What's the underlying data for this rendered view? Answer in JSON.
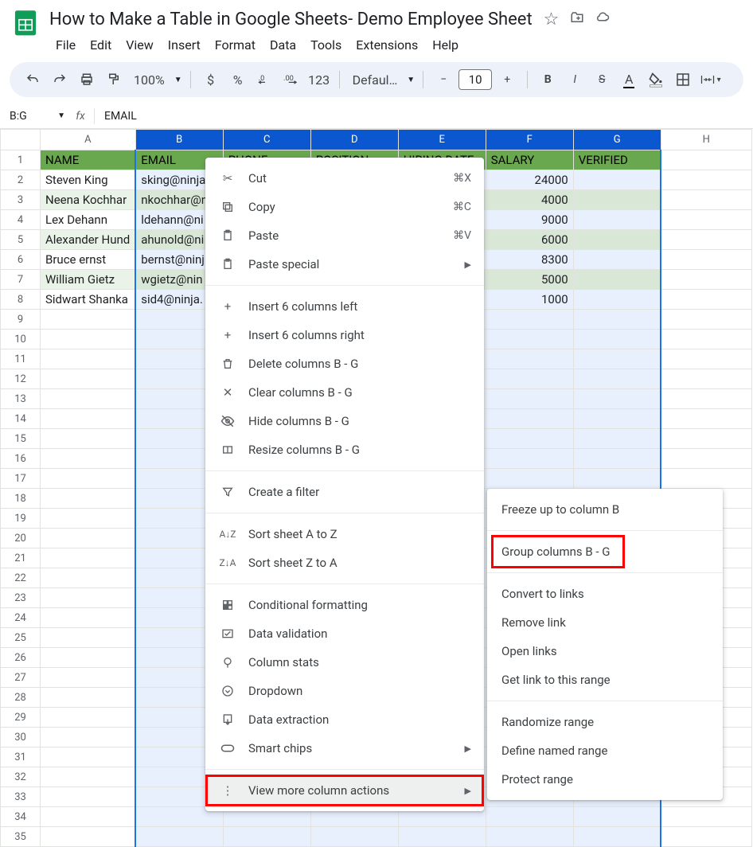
{
  "doc": {
    "title": "How to Make a Table in Google Sheets- Demo Employee Sheet"
  },
  "menu": {
    "file": "File",
    "edit": "Edit",
    "view": "View",
    "insert": "Insert",
    "format": "Format",
    "data": "Data",
    "tools": "Tools",
    "extensions": "Extensions",
    "help": "Help"
  },
  "toolbar": {
    "zoom": "100%",
    "fontname": "Defaul…",
    "fontsize": "10"
  },
  "namebox": {
    "ref": "B:G",
    "fx": "fx",
    "formula": "EMAIL"
  },
  "cols": [
    "A",
    "B",
    "C",
    "D",
    "E",
    "F",
    "G",
    "H"
  ],
  "headers": {
    "name": "NAME",
    "email": "EMAIL",
    "phone": "PHONE",
    "position": "POSITION",
    "hiring": "HIRING DATE",
    "salary": "SALARY",
    "verified": "VERIFIED"
  },
  "rows": [
    {
      "name": "Steven King",
      "email": "sking@ninja",
      "salary": "24000",
      "alt": false
    },
    {
      "name": "Neena Kochhar",
      "email": "nkochhar@n",
      "salary": "4000",
      "alt": true
    },
    {
      "name": "Lex Dehann",
      "email": "ldehann@ni",
      "salary": "9000",
      "alt": false
    },
    {
      "name": "Alexander Hund",
      "email": "ahunold@ni",
      "salary": "6000",
      "alt": true
    },
    {
      "name": "Bruce ernst",
      "email": "bernst@ninj",
      "salary": "8300",
      "alt": false
    },
    {
      "name": "William Gietz",
      "email": "wgietz@nin",
      "salary": "5000",
      "alt": true
    },
    {
      "name": "Sidwart Shanka",
      "email": "sid4@ninja.",
      "salary": "1000",
      "alt": false
    }
  ],
  "ctx1": {
    "cut": "Cut",
    "cut_s": "⌘X",
    "copy": "Copy",
    "copy_s": "⌘C",
    "paste": "Paste",
    "paste_s": "⌘V",
    "pspecial": "Paste special",
    "insL": "Insert 6 columns left",
    "insR": "Insert 6 columns right",
    "del": "Delete columns B - G",
    "clear": "Clear columns B - G",
    "hide": "Hide columns B - G",
    "resize": "Resize columns B - G",
    "filter": "Create a filter",
    "sortAZ": "Sort sheet A to Z",
    "sortZA": "Sort sheet Z to A",
    "condfmt": "Conditional formatting",
    "dataval": "Data validation",
    "colstats": "Column stats",
    "dropdown": "Dropdown",
    "dataext": "Data extraction",
    "chips": "Smart chips",
    "more": "View more column actions"
  },
  "ctx2": {
    "freeze": "Freeze up to column B",
    "group": "Group columns B - G",
    "convert": "Convert to links",
    "remove": "Remove link",
    "open": "Open links",
    "getlink": "Get link to this range",
    "rand": "Randomize range",
    "named": "Define named range",
    "protect": "Protect range"
  }
}
